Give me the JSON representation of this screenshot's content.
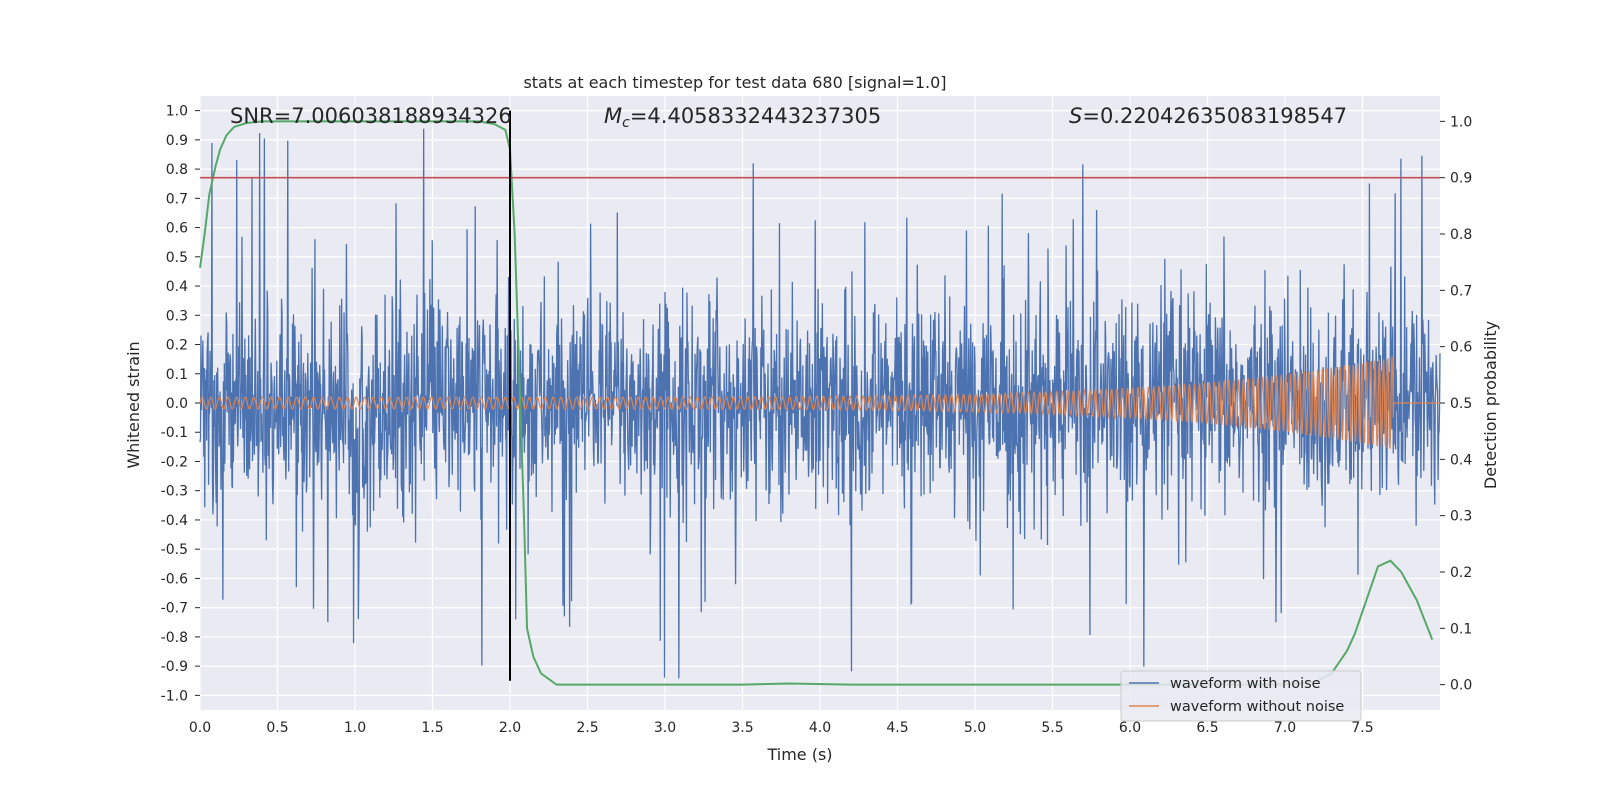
{
  "chart_data": {
    "type": "line",
    "title": "stats at each timestep for test data 680 [signal=1.0]",
    "xlabel": "Time (s)",
    "ylabel_left": "Whitened strain",
    "ylabel_right": "Detection probability",
    "xlim": [
      0.0,
      8.0
    ],
    "ylim_left": [
      -1.05,
      1.05
    ],
    "ylim_right": [
      -0.045,
      1.045
    ],
    "x_ticks": [
      "0.0",
      "0.5",
      "1.0",
      "1.5",
      "2.0",
      "2.5",
      "3.0",
      "3.5",
      "4.0",
      "4.5",
      "5.0",
      "5.5",
      "6.0",
      "6.5",
      "7.0",
      "7.5"
    ],
    "y_ticks_left": [
      "1.0",
      "0.9",
      "0.8",
      "0.7",
      "0.6",
      "0.5",
      "0.4",
      "0.3",
      "0.2",
      "0.1",
      "0.0",
      "-0.1",
      "-0.2",
      "-0.3",
      "-0.4",
      "-0.5",
      "-0.6",
      "-0.7",
      "-0.8",
      "-0.9",
      "-1.0"
    ],
    "y_ticks_right": [
      "1.0",
      "0.9",
      "0.8",
      "0.7",
      "0.6",
      "0.5",
      "0.4",
      "0.3",
      "0.2",
      "0.1",
      "0.0"
    ],
    "grid": true,
    "annotations": {
      "snr": "SNR=7.006038188934326",
      "mc_symbol": "M",
      "mc_sub": "c",
      "mc_value": "=4.4058332443237305",
      "s_symbol": "S",
      "s_value": "=0.22042635083198547"
    },
    "threshold": {
      "axis": "right",
      "value": 0.9,
      "color": "#c44e52"
    },
    "vline": {
      "x": 2.0,
      "ymin": -0.95,
      "ymax": 1.0,
      "color": "#000000"
    },
    "series": [
      {
        "name": "waveform with noise",
        "color": "#4c72b0",
        "axis": "left",
        "typical_amplitude": 0.55,
        "peak_amplitude": 1.0
      },
      {
        "name": "waveform without noise",
        "color": "#dd8452",
        "axis": "left",
        "start_amplitude": 0.02,
        "end_amplitude": 0.16,
        "merger_time": 7.7
      },
      {
        "name": "detection probability",
        "color": "#55a868",
        "axis": "right",
        "x": [
          0.0,
          0.03,
          0.06,
          0.1,
          0.13,
          0.17,
          0.22,
          0.3,
          0.4,
          0.5,
          0.7,
          1.0,
          1.3,
          1.6,
          1.8,
          1.9,
          1.97,
          2.0,
          2.03,
          2.06,
          2.09,
          2.11,
          2.15,
          2.2,
          2.3,
          2.6,
          3.0,
          3.5,
          3.8,
          4.2,
          4.6,
          5.0,
          5.5,
          6.0,
          6.5,
          7.0,
          7.2,
          7.3,
          7.4,
          7.45,
          7.5,
          7.55,
          7.6,
          7.68,
          7.75,
          7.85,
          7.95
        ],
        "y": [
          0.74,
          0.8,
          0.87,
          0.92,
          0.95,
          0.975,
          0.99,
          0.997,
          1.0,
          1.0,
          1.0,
          1.0,
          1.0,
          1.0,
          1.0,
          0.995,
          0.985,
          0.95,
          0.8,
          0.55,
          0.3,
          0.1,
          0.05,
          0.02,
          0.0,
          0.0,
          0.0,
          0.0,
          0.002,
          0.0,
          0.0,
          0.0,
          0.0,
          0.0,
          0.0,
          0.0,
          0.005,
          0.02,
          0.06,
          0.09,
          0.13,
          0.17,
          0.21,
          0.22,
          0.2,
          0.15,
          0.08
        ]
      }
    ]
  }
}
